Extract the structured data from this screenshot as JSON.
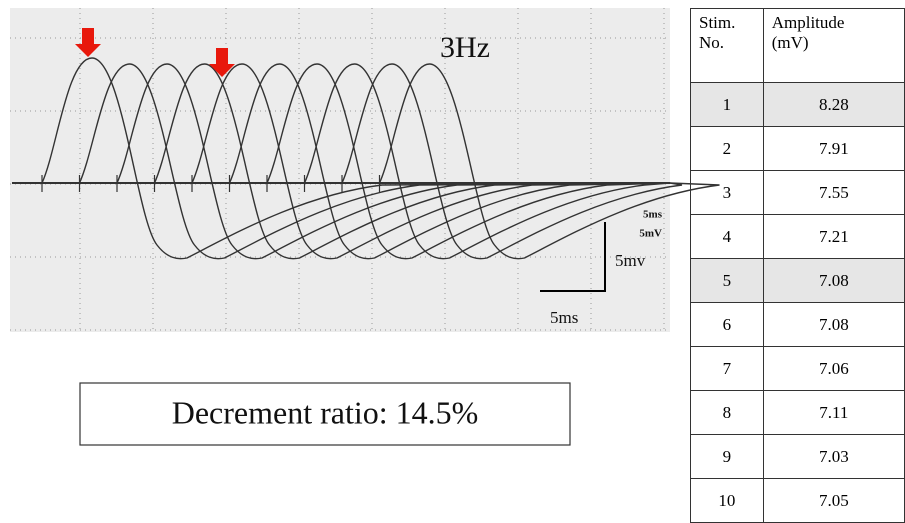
{
  "figure": {
    "frequency_label": "3Hz",
    "scope_time_label": "5ms",
    "scope_volt_label": "5mV",
    "scale_volt": "5mv",
    "scale_time": "5ms",
    "decrement": "Decrement ratio: 14.5%"
  },
  "table": {
    "headers": [
      [
        "Stim.",
        "No."
      ],
      [
        "Amplitude",
        "(mV)"
      ]
    ],
    "rows": [
      [
        "1",
        "8.28"
      ],
      [
        "2",
        "7.91"
      ],
      [
        "3",
        "7.55"
      ],
      [
        "4",
        "7.21"
      ],
      [
        "5",
        "7.08"
      ],
      [
        "6",
        "7.08"
      ],
      [
        "7",
        "7.06"
      ],
      [
        "8",
        "7.11"
      ],
      [
        "9",
        "7.03"
      ],
      [
        "10",
        "7.05"
      ]
    ],
    "shaded_rows": [
      0,
      4
    ]
  }
}
